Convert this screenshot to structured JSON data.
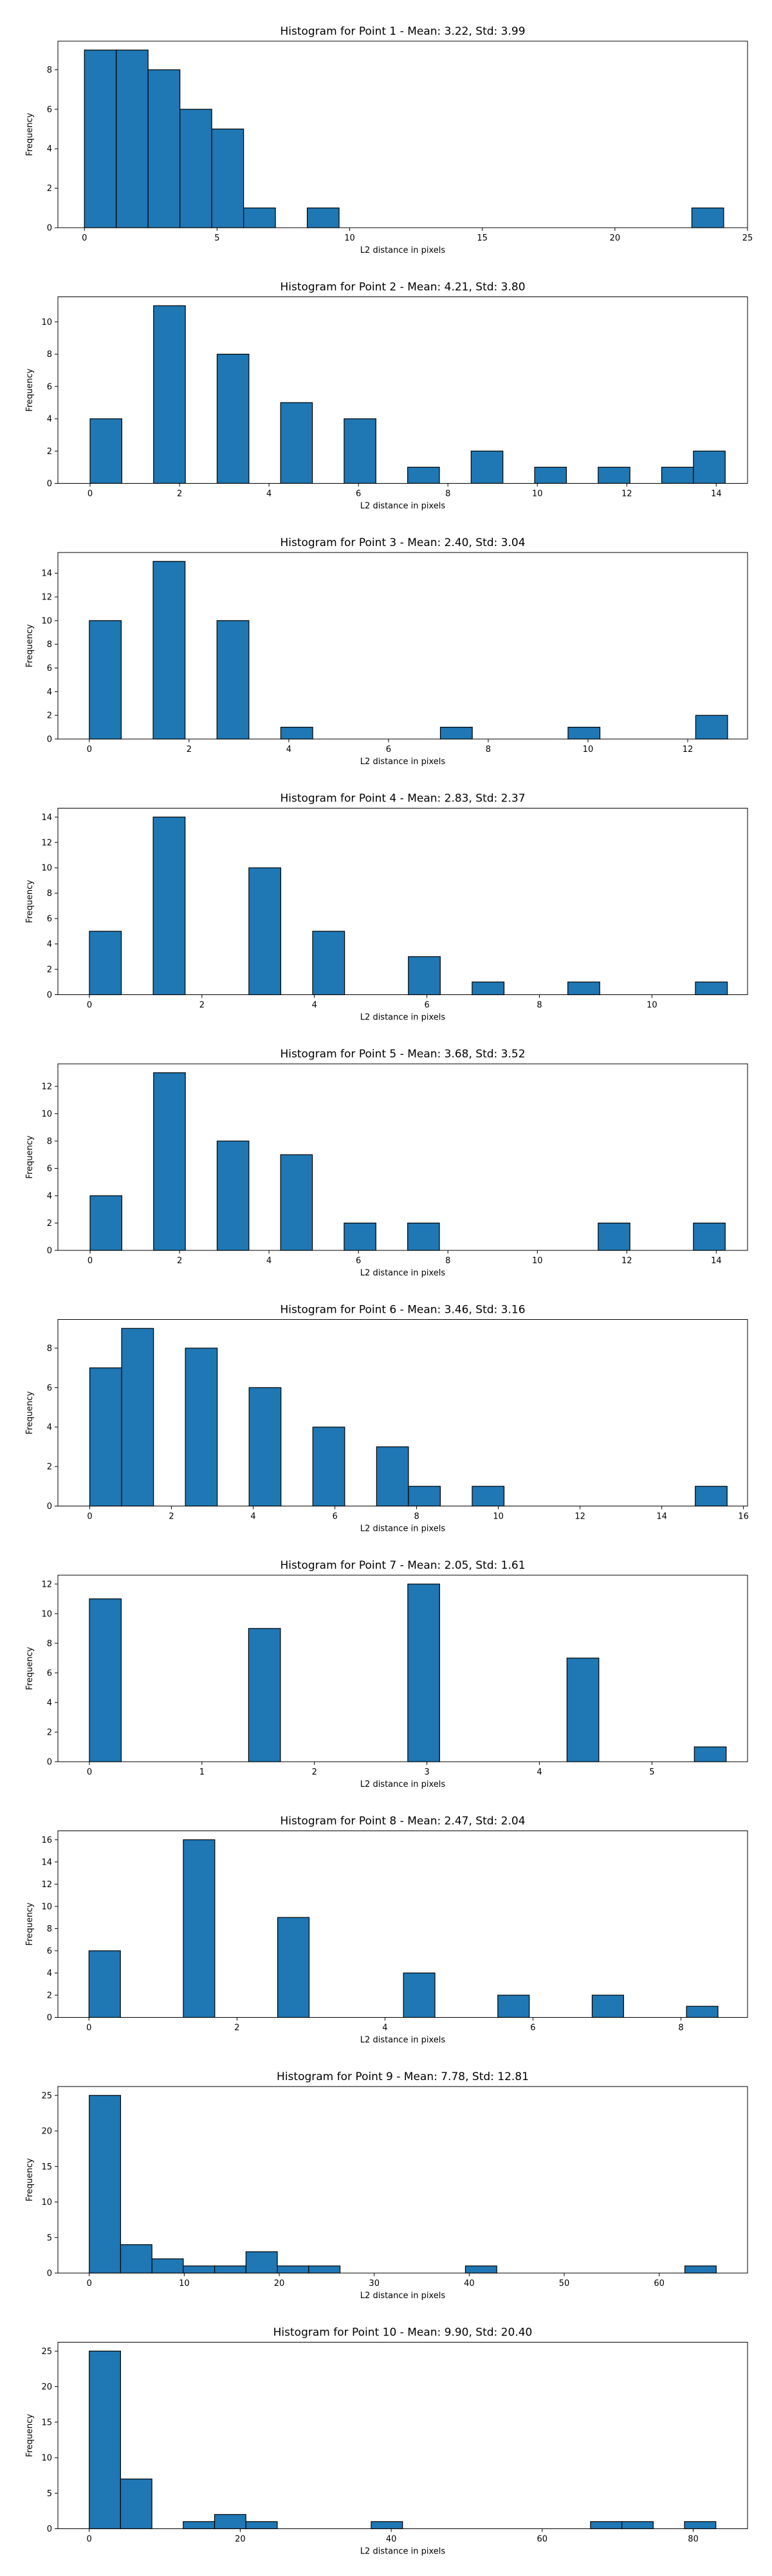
{
  "style": {
    "bar_color": "#1f77b4",
    "edge_color": "#000000",
    "background": "#ffffff"
  },
  "chart_data": [
    {
      "type": "bar",
      "title": "Histogram for Point 1 - Mean: 3.22, Std: 3.99",
      "xlabel": "L2 distance in pixels",
      "ylabel": "Frequency",
      "xlim": [
        -1.0,
        25.0
      ],
      "ylim": [
        0,
        9.45
      ],
      "xticks": [
        0,
        5,
        10,
        15,
        20,
        25
      ],
      "yticks": [
        0,
        2,
        4,
        6,
        8
      ],
      "bin_width": 1.2,
      "bins": [
        {
          "x": 0.0,
          "count": 9
        },
        {
          "x": 1.2,
          "count": 9
        },
        {
          "x": 2.4,
          "count": 8
        },
        {
          "x": 3.6,
          "count": 6
        },
        {
          "x": 4.8,
          "count": 5
        },
        {
          "x": 6.0,
          "count": 1
        },
        {
          "x": 8.4,
          "count": 1
        },
        {
          "x": 22.9,
          "count": 1
        }
      ]
    },
    {
      "type": "bar",
      "title": "Histogram for Point 2 - Mean: 4.21, Std: 3.80",
      "xlabel": "L2 distance in pixels",
      "ylabel": "Frequency",
      "xlim": [
        -0.72,
        14.7
      ],
      "ylim": [
        0,
        11.55
      ],
      "xticks": [
        0,
        2,
        4,
        6,
        8,
        10,
        12,
        14
      ],
      "yticks": [
        0,
        2,
        4,
        6,
        8,
        10
      ],
      "bin_width": 0.71,
      "bins": [
        {
          "x": 0.0,
          "count": 4
        },
        {
          "x": 1.42,
          "count": 11
        },
        {
          "x": 2.84,
          "count": 8
        },
        {
          "x": 4.26,
          "count": 5
        },
        {
          "x": 5.68,
          "count": 4
        },
        {
          "x": 7.1,
          "count": 1
        },
        {
          "x": 8.52,
          "count": 2
        },
        {
          "x": 9.94,
          "count": 1
        },
        {
          "x": 11.36,
          "count": 1
        },
        {
          "x": 12.78,
          "count": 1
        },
        {
          "x": 13.49,
          "count": 2
        }
      ]
    },
    {
      "type": "bar",
      "title": "Histogram for Point 3 - Mean: 2.40, Std: 3.04",
      "xlabel": "L2 distance in pixels",
      "ylabel": "Frequency",
      "xlim": [
        -0.63,
        13.2
      ],
      "ylim": [
        0,
        15.75
      ],
      "xticks": [
        0,
        2,
        4,
        6,
        8,
        10,
        12
      ],
      "yticks": [
        0,
        2,
        4,
        6,
        8,
        10,
        12,
        14
      ],
      "bin_width": 0.64,
      "bins": [
        {
          "x": 0.0,
          "count": 10
        },
        {
          "x": 1.28,
          "count": 15
        },
        {
          "x": 2.56,
          "count": 10
        },
        {
          "x": 3.84,
          "count": 1
        },
        {
          "x": 7.04,
          "count": 1
        },
        {
          "x": 9.6,
          "count": 1
        },
        {
          "x": 12.16,
          "count": 2
        }
      ]
    },
    {
      "type": "bar",
      "title": "Histogram for Point 4 - Mean: 2.83, Std: 2.37",
      "xlabel": "L2 distance in pixels",
      "ylabel": "Frequency",
      "xlim": [
        -0.56,
        11.7
      ],
      "ylim": [
        0,
        14.7
      ],
      "xticks": [
        0,
        2,
        4,
        6,
        8,
        10
      ],
      "yticks": [
        0,
        2,
        4,
        6,
        8,
        10,
        12,
        14
      ],
      "bin_width": 0.567,
      "bins": [
        {
          "x": 0.0,
          "count": 5
        },
        {
          "x": 1.134,
          "count": 14
        },
        {
          "x": 2.835,
          "count": 10
        },
        {
          "x": 3.969,
          "count": 5
        },
        {
          "x": 5.67,
          "count": 3
        },
        {
          "x": 6.804,
          "count": 1
        },
        {
          "x": 8.505,
          "count": 1
        },
        {
          "x": 10.773,
          "count": 1
        }
      ]
    },
    {
      "type": "bar",
      "title": "Histogram for Point 5 - Mean: 3.68, Std: 3.52",
      "xlabel": "L2 distance in pixels",
      "ylabel": "Frequency",
      "xlim": [
        -0.72,
        14.7
      ],
      "ylim": [
        0,
        13.65
      ],
      "xticks": [
        0,
        2,
        4,
        6,
        8,
        10,
        12,
        14
      ],
      "yticks": [
        0,
        2,
        4,
        6,
        8,
        10,
        12
      ],
      "bin_width": 0.71,
      "bins": [
        {
          "x": 0.0,
          "count": 4
        },
        {
          "x": 1.42,
          "count": 13
        },
        {
          "x": 2.84,
          "count": 8
        },
        {
          "x": 4.26,
          "count": 7
        },
        {
          "x": 5.68,
          "count": 2
        },
        {
          "x": 7.1,
          "count": 2
        },
        {
          "x": 11.36,
          "count": 2
        },
        {
          "x": 13.49,
          "count": 2
        }
      ]
    },
    {
      "type": "bar",
      "title": "Histogram for Point 6 - Mean: 3.46, Std: 3.16",
      "xlabel": "L2 distance in pixels",
      "ylabel": "Frequency",
      "xlim": [
        -0.78,
        16.1
      ],
      "ylim": [
        0,
        9.45
      ],
      "xticks": [
        0,
        2,
        4,
        6,
        8,
        10,
        12,
        14,
        16
      ],
      "yticks": [
        0,
        2,
        4,
        6,
        8
      ],
      "bin_width": 0.78,
      "bins": [
        {
          "x": 0.0,
          "count": 7
        },
        {
          "x": 0.78,
          "count": 9
        },
        {
          "x": 2.34,
          "count": 8
        },
        {
          "x": 3.9,
          "count": 6
        },
        {
          "x": 5.46,
          "count": 4
        },
        {
          "x": 7.02,
          "count": 3
        },
        {
          "x": 7.8,
          "count": 1
        },
        {
          "x": 9.36,
          "count": 1
        },
        {
          "x": 14.82,
          "count": 1
        }
      ]
    },
    {
      "type": "bar",
      "title": "Histogram for Point 7 - Mean: 2.05, Std: 1.61",
      "xlabel": "L2 distance in pixels",
      "ylabel": "Frequency",
      "xlim": [
        -0.28,
        5.85
      ],
      "ylim": [
        0,
        12.6
      ],
      "xticks": [
        0,
        1,
        2,
        3,
        4,
        5
      ],
      "yticks": [
        0,
        2,
        4,
        6,
        8,
        10,
        12
      ],
      "bin_width": 0.283,
      "bins": [
        {
          "x": 0.0,
          "count": 11
        },
        {
          "x": 1.415,
          "count": 9
        },
        {
          "x": 2.83,
          "count": 12
        },
        {
          "x": 4.245,
          "count": 7
        },
        {
          "x": 5.377,
          "count": 1
        }
      ]
    },
    {
      "type": "bar",
      "title": "Histogram for Point 8 - Mean: 2.47, Std: 2.04",
      "xlabel": "L2 distance in pixels",
      "ylabel": "Frequency",
      "xlim": [
        -0.42,
        8.9
      ],
      "ylim": [
        0,
        16.8
      ],
      "xticks": [
        0,
        2,
        4,
        6,
        8
      ],
      "yticks": [
        0,
        2,
        4,
        6,
        8,
        10,
        12,
        14,
        16
      ],
      "bin_width": 0.425,
      "bins": [
        {
          "x": 0.0,
          "count": 6
        },
        {
          "x": 1.275,
          "count": 16
        },
        {
          "x": 2.55,
          "count": 9
        },
        {
          "x": 4.25,
          "count": 4
        },
        {
          "x": 5.525,
          "count": 2
        },
        {
          "x": 6.8,
          "count": 2
        },
        {
          "x": 8.075,
          "count": 1
        }
      ]
    },
    {
      "type": "bar",
      "title": "Histogram for Point 9 - Mean: 7.78, Std: 12.81",
      "xlabel": "L2 distance in pixels",
      "ylabel": "Frequency",
      "xlim": [
        -3.3,
        69.3
      ],
      "ylim": [
        0,
        26.25
      ],
      "xticks": [
        0,
        10,
        20,
        30,
        40,
        50,
        60
      ],
      "yticks": [
        0,
        5,
        10,
        15,
        20,
        25
      ],
      "bin_width": 3.3,
      "bins": [
        {
          "x": 0.0,
          "count": 25
        },
        {
          "x": 3.3,
          "count": 4
        },
        {
          "x": 6.6,
          "count": 2
        },
        {
          "x": 9.9,
          "count": 1
        },
        {
          "x": 13.2,
          "count": 1
        },
        {
          "x": 16.5,
          "count": 3
        },
        {
          "x": 19.8,
          "count": 1
        },
        {
          "x": 23.1,
          "count": 1
        },
        {
          "x": 39.6,
          "count": 1
        },
        {
          "x": 62.7,
          "count": 1
        }
      ]
    },
    {
      "type": "bar",
      "title": "Histogram for Point 10 - Mean: 9.90, Std: 20.40",
      "xlabel": "L2 distance in pixels",
      "ylabel": "Frequency",
      "xlim": [
        -4.15,
        87.2
      ],
      "ylim": [
        0,
        26.25
      ],
      "xticks": [
        0,
        20,
        40,
        60,
        80
      ],
      "yticks": [
        0,
        5,
        10,
        15,
        20,
        25
      ],
      "bin_width": 4.15,
      "bins": [
        {
          "x": 0.0,
          "count": 25
        },
        {
          "x": 4.15,
          "count": 7
        },
        {
          "x": 12.45,
          "count": 1
        },
        {
          "x": 16.6,
          "count": 2
        },
        {
          "x": 20.75,
          "count": 1
        },
        {
          "x": 37.35,
          "count": 1
        },
        {
          "x": 66.4,
          "count": 1
        },
        {
          "x": 70.55,
          "count": 1
        },
        {
          "x": 78.85,
          "count": 1
        }
      ]
    }
  ]
}
